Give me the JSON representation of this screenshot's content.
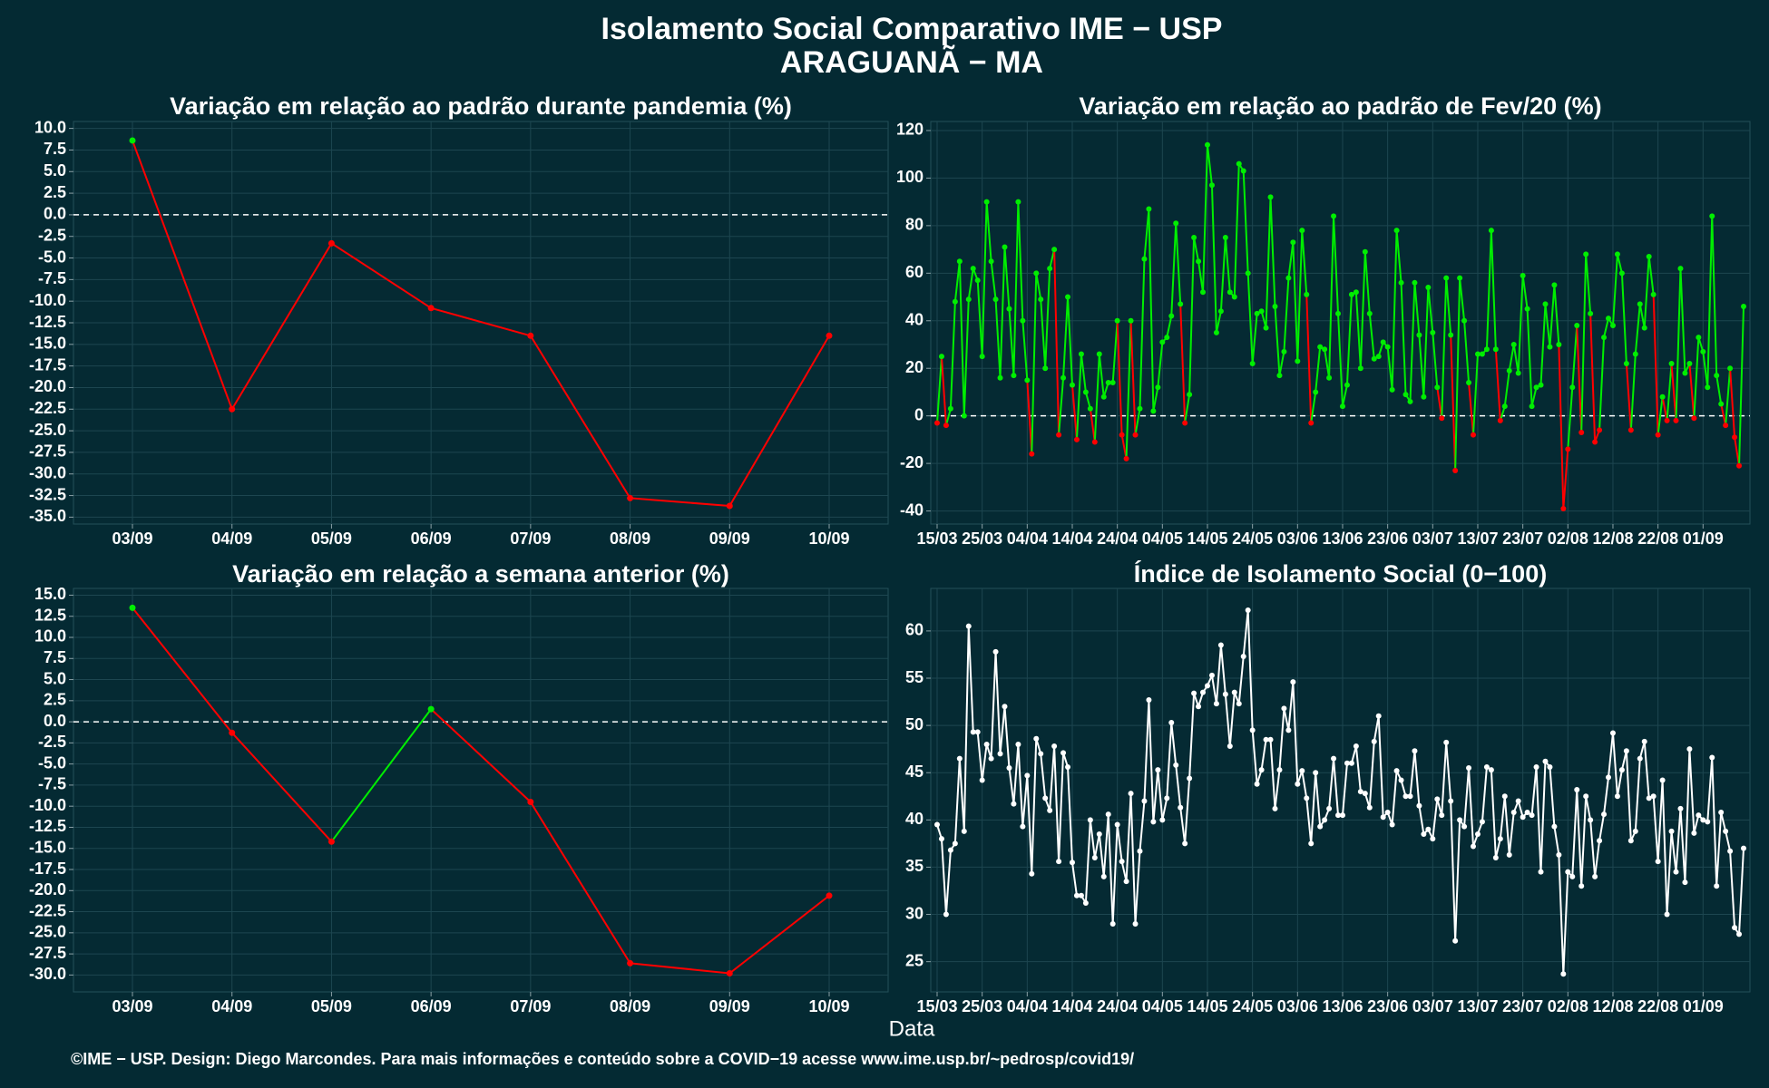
{
  "title": "Isolamento Social Comparativo IME − USP",
  "subtitle": "ARAGUANÃ − MA",
  "xlabel": "Data",
  "footer": "©IME − USP. Design: Diego Marcondes. Para mais informações e conteúdo sobre a COVID−19 acesse www.ime.usp.br/~pedrosp/covid19/",
  "chart_data": [
    {
      "type": "line",
      "title": "Variação em relação ao padrão durante pandemia (%)",
      "categories": [
        "03/09",
        "04/09",
        "05/09",
        "06/09",
        "07/09",
        "08/09",
        "09/09",
        "10/09"
      ],
      "values": [
        8.6,
        -22.5,
        -3.3,
        -10.8,
        -14.0,
        -32.8,
        -33.7,
        -14.0
      ],
      "positive_color": "#00ee00",
      "negative_color": "#ff0000",
      "reference_line": 0,
      "ylim": [
        -35.8,
        10.8
      ],
      "yticks": [
        {
          "value": 10,
          "label": "10.0"
        },
        7.5,
        {
          "value": 5,
          "label": "5.0"
        },
        2.5,
        {
          "value": 0,
          "label": "0.0"
        },
        -2.5,
        {
          "value": -5,
          "label": "-5.0"
        },
        -7.5,
        {
          "value": -10,
          "label": "-10.0"
        },
        -12.5,
        {
          "value": -15,
          "label": "-15.0"
        },
        -17.5,
        {
          "value": -20,
          "label": "-20.0"
        },
        -22.5,
        {
          "value": -25,
          "label": "-25.0"
        },
        -27.5,
        {
          "value": -30,
          "label": "-30.0"
        },
        -32.5,
        {
          "value": -35,
          "label": "-35.0"
        }
      ],
      "grid": true
    },
    {
      "type": "line",
      "title": "Variação em relação ao padrão de Fev/20 (%)",
      "categories": [
        "15/03",
        null,
        null,
        null,
        null,
        null,
        null,
        null,
        null,
        null,
        "25/03",
        null,
        null,
        null,
        null,
        null,
        null,
        null,
        null,
        null,
        "04/04",
        null,
        null,
        null,
        null,
        null,
        null,
        null,
        null,
        null,
        "14/04",
        null,
        null,
        null,
        null,
        null,
        null,
        null,
        null,
        null,
        "24/04",
        null,
        null,
        null,
        null,
        null,
        null,
        null,
        null,
        null,
        "04/05",
        null,
        null,
        null,
        null,
        null,
        null,
        null,
        null,
        null,
        "14/05",
        null,
        null,
        null,
        null,
        null,
        null,
        null,
        null,
        null,
        "24/05",
        null,
        null,
        null,
        null,
        null,
        null,
        null,
        null,
        null,
        "03/06",
        null,
        null,
        null,
        null,
        null,
        null,
        null,
        null,
        null,
        "13/06",
        null,
        null,
        null,
        null,
        null,
        null,
        null,
        null,
        null,
        "23/06",
        null,
        null,
        null,
        null,
        null,
        null,
        null,
        null,
        null,
        "03/07",
        null,
        null,
        null,
        null,
        null,
        null,
        null,
        null,
        null,
        "13/07",
        null,
        null,
        null,
        null,
        null,
        null,
        null,
        null,
        null,
        "23/07",
        null,
        null,
        null,
        null,
        null,
        null,
        null,
        null,
        null,
        "02/08",
        null,
        null,
        null,
        null,
        null,
        null,
        null,
        null,
        null,
        "12/08",
        null,
        null,
        null,
        null,
        null,
        null,
        null,
        null,
        null,
        "22/08",
        null,
        null,
        null,
        null,
        null,
        null,
        null,
        null,
        null,
        "01/09",
        null,
        null,
        null,
        null,
        null,
        null,
        null,
        null,
        null
      ],
      "values": [
        -3,
        25,
        -4,
        3,
        48,
        65,
        0,
        49,
        62,
        57,
        25,
        90,
        65,
        49,
        16,
        71,
        45,
        17,
        90,
        40,
        15,
        -16,
        60,
        49,
        20,
        62,
        70,
        -8,
        16,
        50,
        13,
        -10,
        26,
        10,
        3,
        -11,
        26,
        8,
        14,
        14,
        40,
        -8,
        -18,
        40,
        -8,
        3,
        66,
        87,
        2,
        12,
        31,
        33,
        42,
        81,
        47,
        -3,
        9,
        75,
        65,
        52,
        114,
        97,
        35,
        44,
        75,
        52,
        50,
        106,
        103,
        60,
        22,
        43,
        44,
        37,
        92,
        46,
        17,
        27,
        58,
        73,
        23,
        78,
        51,
        -3,
        10,
        29,
        28,
        16,
        84,
        43,
        4,
        13,
        51,
        52,
        20,
        69,
        43,
        24,
        25,
        31,
        29,
        11,
        78,
        56,
        9,
        6,
        56,
        34,
        8,
        54,
        35,
        12,
        -1,
        58,
        34,
        -23,
        58,
        40,
        14,
        -8,
        26,
        26,
        28,
        78,
        28,
        -2,
        4,
        19,
        30,
        18,
        59,
        45,
        4,
        12,
        13,
        47,
        29,
        55,
        30,
        -39,
        -14,
        12,
        38,
        -7,
        68,
        43,
        -11,
        -6,
        33,
        41,
        38,
        68,
        60,
        22,
        -6,
        26,
        47,
        37,
        67,
        51,
        -8,
        8,
        -2,
        22,
        -2,
        62,
        18,
        22,
        -1,
        33,
        27,
        12,
        84,
        17,
        5,
        -4,
        20,
        -9,
        -21,
        46
      ],
      "positive_color": "#00ee00",
      "negative_color": "#ff0000",
      "reference_line": 0,
      "ylim": [
        -45.5,
        123.8
      ],
      "yticks": [
        120,
        100,
        80,
        60,
        40,
        20,
        0,
        -20,
        -40
      ],
      "grid": true
    },
    {
      "type": "line",
      "title": "Variação em relação a semana anterior (%)",
      "categories": [
        "03/09",
        "04/09",
        "05/09",
        "06/09",
        "07/09",
        "08/09",
        "09/09",
        "10/09"
      ],
      "values": [
        13.5,
        -1.3,
        -14.2,
        1.5,
        -9.5,
        -28.6,
        -29.8,
        -20.6
      ],
      "positive_color": "#00ee00",
      "negative_color": "#ff0000",
      "reference_line": 0,
      "ylim": [
        -32,
        15.8
      ],
      "yticks": [
        {
          "value": 15,
          "label": "15.0"
        },
        12.5,
        {
          "value": 10,
          "label": "10.0"
        },
        7.5,
        {
          "value": 5,
          "label": "5.0"
        },
        2.5,
        {
          "value": 0,
          "label": "0.0"
        },
        -2.5,
        {
          "value": -5,
          "label": "-5.0"
        },
        -7.5,
        {
          "value": -10,
          "label": "-10.0"
        },
        -12.5,
        {
          "value": -15,
          "label": "-15.0"
        },
        -17.5,
        {
          "value": -20,
          "label": "-20.0"
        },
        -22.5,
        {
          "value": -25,
          "label": "-25.0"
        },
        -27.5,
        {
          "value": -30,
          "label": "-30.0"
        }
      ],
      "grid": true
    },
    {
      "type": "line",
      "title": "Índice de Isolamento Social (0−100)",
      "categories": [
        "15/03",
        null,
        null,
        null,
        null,
        null,
        null,
        null,
        null,
        null,
        "25/03",
        null,
        null,
        null,
        null,
        null,
        null,
        null,
        null,
        null,
        "04/04",
        null,
        null,
        null,
        null,
        null,
        null,
        null,
        null,
        null,
        "14/04",
        null,
        null,
        null,
        null,
        null,
        null,
        null,
        null,
        null,
        "24/04",
        null,
        null,
        null,
        null,
        null,
        null,
        null,
        null,
        null,
        "04/05",
        null,
        null,
        null,
        null,
        null,
        null,
        null,
        null,
        null,
        "14/05",
        null,
        null,
        null,
        null,
        null,
        null,
        null,
        null,
        null,
        "24/05",
        null,
        null,
        null,
        null,
        null,
        null,
        null,
        null,
        null,
        "03/06",
        null,
        null,
        null,
        null,
        null,
        null,
        null,
        null,
        null,
        "13/06",
        null,
        null,
        null,
        null,
        null,
        null,
        null,
        null,
        null,
        "23/06",
        null,
        null,
        null,
        null,
        null,
        null,
        null,
        null,
        null,
        "03/07",
        null,
        null,
        null,
        null,
        null,
        null,
        null,
        null,
        null,
        "13/07",
        null,
        null,
        null,
        null,
        null,
        null,
        null,
        null,
        null,
        "23/07",
        null,
        null,
        null,
        null,
        null,
        null,
        null,
        null,
        null,
        "02/08",
        null,
        null,
        null,
        null,
        null,
        null,
        null,
        null,
        null,
        "12/08",
        null,
        null,
        null,
        null,
        null,
        null,
        null,
        null,
        null,
        "22/08",
        null,
        null,
        null,
        null,
        null,
        null,
        null,
        null,
        null,
        "01/09",
        null,
        null,
        null,
        null,
        null,
        null,
        null,
        null,
        null
      ],
      "values": [
        39.5,
        38,
        30,
        36.8,
        37.5,
        46.5,
        38.8,
        60.5,
        49.3,
        49.3,
        44.2,
        48,
        46.5,
        57.8,
        47,
        52,
        45.5,
        41.7,
        48,
        39.3,
        44.7,
        34.3,
        48.6,
        47,
        42.3,
        41,
        47.8,
        35.6,
        47.1,
        45.6,
        35.5,
        32,
        32,
        31.2,
        40,
        36,
        38.5,
        34,
        40.6,
        29,
        39.5,
        35.6,
        33.5,
        42.8,
        29,
        36.7,
        42,
        52.7,
        39.8,
        45.3,
        40,
        42.3,
        50.3,
        45.8,
        41.3,
        37.5,
        44.4,
        53.4,
        52,
        53.5,
        54.2,
        55.3,
        52.3,
        58.5,
        53.3,
        47.8,
        53.5,
        52.3,
        57.3,
        62.2,
        49.5,
        43.8,
        45.3,
        48.5,
        48.5,
        41.2,
        45.3,
        51.8,
        49.5,
        54.6,
        43.8,
        45.2,
        42.3,
        37.5,
        45,
        39.3,
        40,
        41.2,
        46.5,
        40.5,
        40.5,
        46,
        46,
        47.8,
        43,
        42.8,
        41.3,
        48.3,
        51,
        40.3,
        40.8,
        39.5,
        45.2,
        44.2,
        42.5,
        42.5,
        47.3,
        41.5,
        38.5,
        39,
        38,
        42.2,
        40.5,
        48.2,
        42,
        27.2,
        40,
        39.3,
        45.5,
        37.2,
        38.5,
        39.8,
        45.6,
        45.3,
        36,
        38,
        42.5,
        36.3,
        40.8,
        42,
        40.3,
        40.8,
        40.5,
        45.6,
        34.5,
        46.2,
        45.6,
        39.3,
        36.3,
        23.7,
        34.5,
        34,
        43.2,
        33,
        42.5,
        40,
        34,
        37.8,
        40.6,
        44.5,
        49.2,
        42.5,
        45.3,
        47.3,
        37.8,
        38.8,
        46.5,
        48.3,
        42.3,
        42.5,
        35.6,
        44.2,
        30,
        38.8,
        34.5,
        41.2,
        33.4,
        47.5,
        38.6,
        40.5,
        40,
        39.8,
        46.6,
        33,
        40.8,
        38.8,
        36.7,
        28.6,
        27.9,
        37
      ],
      "color": "#ffffff",
      "ylim": [
        21.8,
        64.5
      ],
      "yticks": [
        60,
        55,
        50,
        45,
        40,
        35,
        30,
        25
      ],
      "grid": true
    }
  ]
}
